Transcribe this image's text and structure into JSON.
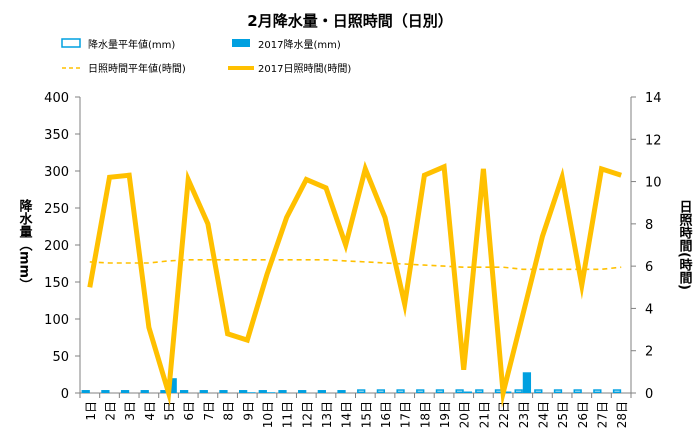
{
  "chart_data": {
    "type": "bar+line",
    "title": "2月降水量・日照時間（日別）",
    "categories": [
      "1日",
      "2日",
      "3日",
      "4日",
      "5日",
      "6日",
      "7日",
      "8日",
      "9日",
      "10日",
      "11日",
      "12日",
      "13日",
      "14日",
      "15日",
      "16日",
      "17日",
      "18日",
      "19日",
      "20日",
      "21日",
      "22日",
      "23日",
      "24日",
      "25日",
      "26日",
      "27日",
      "28日"
    ],
    "y_left": {
      "label": "降水量（mm）",
      "min": 0,
      "max": 400,
      "ticks": [
        0,
        50,
        100,
        150,
        200,
        250,
        300,
        350,
        400
      ]
    },
    "y_right": {
      "label": "日照時間(時間)",
      "min": 0,
      "max": 14,
      "ticks": [
        0,
        2,
        4,
        6,
        8,
        10,
        12,
        14
      ]
    },
    "series": [
      {
        "name": "降水量平年値(mm)",
        "type": "bar",
        "style": "outline",
        "axis": "left",
        "color": "#00A0E0",
        "values": [
          4,
          4,
          4,
          4,
          4,
          4,
          4,
          4,
          4,
          4,
          4,
          4,
          4,
          4,
          5,
          5,
          5,
          5,
          5,
          5,
          5,
          5,
          5,
          5,
          5,
          5,
          5,
          5
        ]
      },
      {
        "name": "2017降水量(mm)",
        "type": "bar",
        "style": "solid",
        "axis": "left",
        "color": "#00A0E0",
        "values": [
          0,
          0,
          0,
          0,
          20,
          0,
          0,
          0,
          1,
          1,
          0,
          0,
          0,
          0,
          0,
          0,
          0,
          0,
          0,
          2,
          0,
          2,
          28,
          0,
          0,
          0,
          0,
          0
        ]
      },
      {
        "name": "日照時間平年値(時間)",
        "type": "line",
        "style": "dashed",
        "axis": "right",
        "color": "#FFC000",
        "values": [
          6.2,
          6.15,
          6.15,
          6.15,
          6.25,
          6.3,
          6.3,
          6.3,
          6.3,
          6.3,
          6.3,
          6.3,
          6.3,
          6.25,
          6.2,
          6.15,
          6.1,
          6.05,
          6.0,
          5.95,
          5.95,
          5.95,
          5.85,
          5.85,
          5.85,
          5.85,
          5.85,
          5.95
        ]
      },
      {
        "name": "2017日照時間(時間)",
        "type": "line",
        "style": "solid",
        "axis": "right",
        "color": "#FFC000",
        "values": [
          5.0,
          10.2,
          10.3,
          3.1,
          0.0,
          10.1,
          8.0,
          2.8,
          2.5,
          5.6,
          8.3,
          10.1,
          9.7,
          7.0,
          10.6,
          8.3,
          4.2,
          10.3,
          10.7,
          1.1,
          10.6,
          0.0,
          3.7,
          7.4,
          10.2,
          5.1,
          10.6,
          10.3
        ]
      }
    ],
    "legend_position": "top",
    "grid": false
  },
  "colors": {
    "bar": "#00A0E0",
    "line": "#FFC000",
    "axis": "#808080",
    "text": "#000000"
  }
}
